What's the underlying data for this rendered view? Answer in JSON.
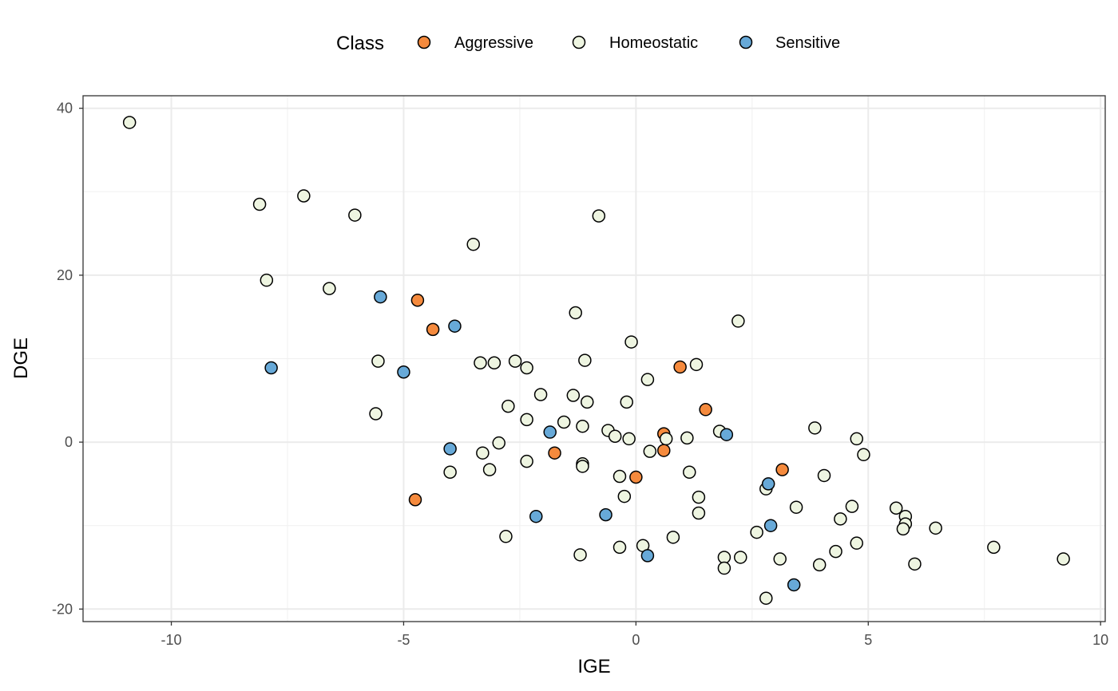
{
  "chart_data": {
    "type": "scatter",
    "xlabel": "IGE",
    "ylabel": "DGE",
    "xlim": [
      -11.9,
      10.1
    ],
    "ylim": [
      -21.5,
      41.5
    ],
    "x_ticks": [
      -10,
      -5,
      0,
      5,
      10
    ],
    "y_ticks": [
      -20,
      0,
      20,
      40
    ],
    "x_tick_labels": [
      "-10",
      "-5",
      "0",
      "5",
      "10"
    ],
    "y_tick_labels": [
      "-20",
      "0",
      "20",
      "40"
    ],
    "grid": true,
    "legend": {
      "title": "Class",
      "position": "top",
      "entries": [
        "Aggressive",
        "Homeostatic",
        "Sensitive"
      ]
    },
    "series": [
      {
        "name": "Aggressive",
        "color": "#f58a3d",
        "points": [
          [
            -4.7,
            17.0
          ],
          [
            -4.37,
            13.5
          ],
          [
            -4.75,
            -6.9
          ],
          [
            -1.75,
            -1.3
          ],
          [
            0.0,
            -4.2
          ],
          [
            0.6,
            1.0
          ],
          [
            0.6,
            -1.0
          ],
          [
            0.95,
            9.0
          ],
          [
            1.5,
            3.9
          ],
          [
            3.15,
            -3.3
          ]
        ]
      },
      {
        "name": "Homeostatic",
        "color": "#eef5e1",
        "points": [
          [
            -10.9,
            38.3
          ],
          [
            -8.1,
            28.5
          ],
          [
            -7.15,
            29.5
          ],
          [
            -6.05,
            27.2
          ],
          [
            -7.95,
            19.4
          ],
          [
            -6.6,
            18.4
          ],
          [
            -3.5,
            23.7
          ],
          [
            -0.8,
            27.1
          ],
          [
            -5.55,
            9.7
          ],
          [
            -5.6,
            3.4
          ],
          [
            -3.35,
            9.5
          ],
          [
            -3.05,
            9.5
          ],
          [
            -2.6,
            9.7
          ],
          [
            -2.35,
            8.9
          ],
          [
            -1.3,
            15.5
          ],
          [
            -1.1,
            9.8
          ],
          [
            -0.1,
            12.0
          ],
          [
            0.25,
            7.5
          ],
          [
            1.3,
            9.3
          ],
          [
            2.2,
            14.5
          ],
          [
            -2.75,
            4.3
          ],
          [
            -2.05,
            5.7
          ],
          [
            -2.35,
            2.7
          ],
          [
            -1.55,
            2.4
          ],
          [
            -1.35,
            5.6
          ],
          [
            -1.15,
            1.9
          ],
          [
            -1.05,
            4.8
          ],
          [
            -0.6,
            1.4
          ],
          [
            -0.45,
            0.7
          ],
          [
            -0.15,
            0.4
          ],
          [
            -0.2,
            4.8
          ],
          [
            0.65,
            0.4
          ],
          [
            0.3,
            -1.1
          ],
          [
            1.1,
            0.5
          ],
          [
            1.8,
            1.3
          ],
          [
            -2.95,
            -0.1
          ],
          [
            -3.3,
            -1.3
          ],
          [
            -3.15,
            -3.3
          ],
          [
            -4.0,
            -3.6
          ],
          [
            -2.35,
            -2.3
          ],
          [
            -1.15,
            -2.6
          ],
          [
            -1.15,
            -2.9
          ],
          [
            -0.35,
            -4.1
          ],
          [
            -0.25,
            -6.5
          ],
          [
            1.15,
            -3.6
          ],
          [
            1.35,
            -6.6
          ],
          [
            1.35,
            -8.5
          ],
          [
            -2.8,
            -11.3
          ],
          [
            -1.2,
            -13.5
          ],
          [
            -0.35,
            -12.6
          ],
          [
            0.15,
            -12.4
          ],
          [
            0.8,
            -11.4
          ],
          [
            1.9,
            -13.8
          ],
          [
            1.9,
            -15.1
          ],
          [
            2.25,
            -13.8
          ],
          [
            2.6,
            -10.8
          ],
          [
            2.8,
            -5.6
          ],
          [
            2.8,
            -18.7
          ],
          [
            3.1,
            -14.0
          ],
          [
            3.45,
            -7.8
          ],
          [
            3.85,
            1.7
          ],
          [
            4.05,
            -4.0
          ],
          [
            3.95,
            -14.7
          ],
          [
            4.3,
            -13.1
          ],
          [
            4.4,
            -9.2
          ],
          [
            4.65,
            -7.7
          ],
          [
            4.75,
            0.4
          ],
          [
            4.75,
            -12.1
          ],
          [
            4.9,
            -1.5
          ],
          [
            5.6,
            -7.9
          ],
          [
            5.8,
            -8.9
          ],
          [
            5.8,
            -9.8
          ],
          [
            5.75,
            -10.4
          ],
          [
            6.0,
            -14.6
          ],
          [
            6.45,
            -10.3
          ],
          [
            7.7,
            -12.6
          ],
          [
            9.2,
            -14.0
          ]
        ]
      },
      {
        "name": "Sensitive",
        "color": "#67a9d8",
        "points": [
          [
            -7.85,
            8.9
          ],
          [
            -5.5,
            17.4
          ],
          [
            -5.0,
            8.4
          ],
          [
            -3.9,
            13.9
          ],
          [
            -4.0,
            -0.8
          ],
          [
            -1.85,
            1.2
          ],
          [
            -2.15,
            -8.9
          ],
          [
            -0.65,
            -8.7
          ],
          [
            0.25,
            -13.6
          ],
          [
            1.95,
            0.9
          ],
          [
            2.85,
            -5.0
          ],
          [
            2.9,
            -10.0
          ],
          [
            3.4,
            -17.1
          ]
        ]
      }
    ]
  }
}
